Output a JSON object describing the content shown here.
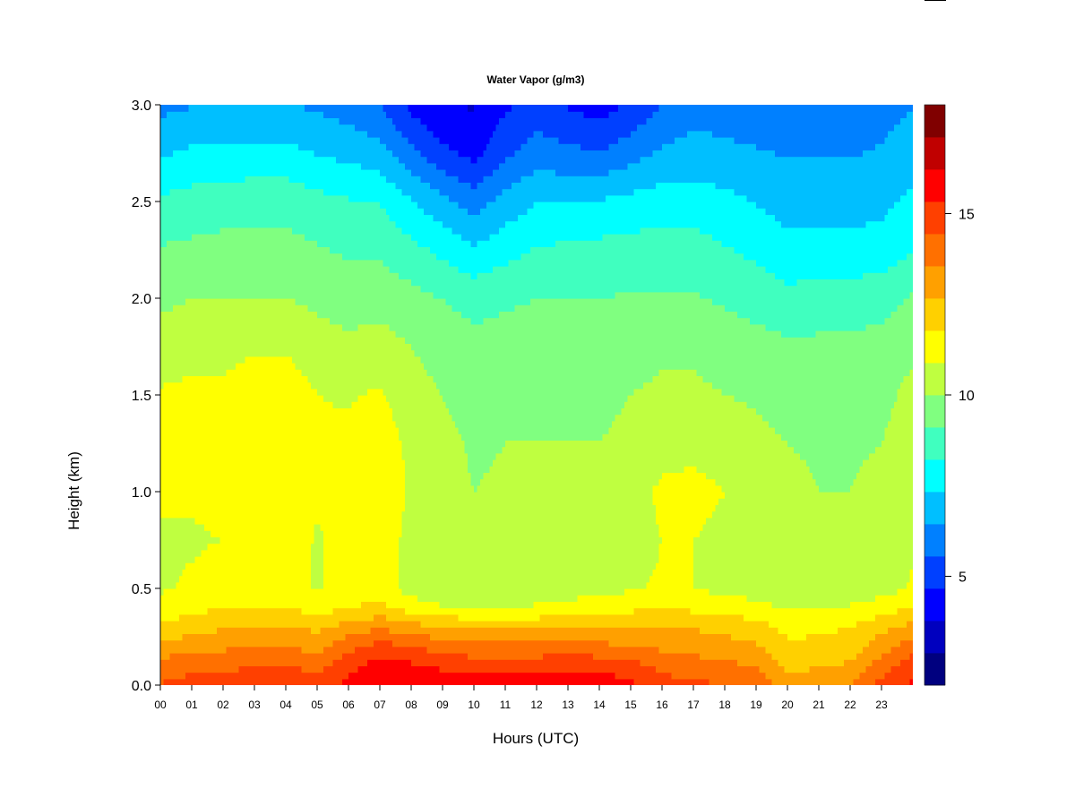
{
  "chart_data": {
    "type": "heatmap",
    "title": "Water Vapor (g/m3)",
    "xlabel": "Hours (UTC)",
    "ylabel": "Height (km)",
    "xlim": [
      0,
      24
    ],
    "ylim": [
      0,
      3.0
    ],
    "x_ticks": [
      "00",
      "01",
      "02",
      "03",
      "04",
      "05",
      "06",
      "07",
      "08",
      "09",
      "10",
      "11",
      "12",
      "13",
      "14",
      "15",
      "16",
      "17",
      "18",
      "19",
      "20",
      "21",
      "22",
      "23"
    ],
    "y_ticks": [
      "0.0",
      "0.5",
      "1.0",
      "1.5",
      "2.0",
      "2.5",
      "3.0"
    ],
    "colorbar": {
      "range": [
        2,
        18
      ],
      "ticks": [
        "5",
        "10",
        "15"
      ],
      "tick_values": [
        5,
        10,
        15
      ],
      "level_colors": [
        "#00007F",
        "#0000BF",
        "#0000FF",
        "#0040FF",
        "#0080FF",
        "#00BFFF",
        "#00FFFF",
        "#40FFBF",
        "#80FF80",
        "#BFFF40",
        "#FFFF00",
        "#FFD000",
        "#FFA000",
        "#FF7000",
        "#FF4000",
        "#FF0000",
        "#C00000",
        "#800000"
      ]
    },
    "hours": [
      0,
      1,
      2,
      3,
      4,
      5,
      6,
      7,
      8,
      9,
      10,
      11,
      12,
      13,
      14,
      15,
      16,
      17,
      18,
      19,
      20,
      21,
      22,
      23,
      24
    ],
    "heights_km": [
      0.0,
      0.1,
      0.2,
      0.3,
      0.4,
      0.5,
      0.75,
      1.0,
      1.25,
      1.5,
      1.75,
      2.0,
      2.25,
      2.5,
      2.75,
      3.0
    ],
    "z": [
      [
        14.5,
        14.8,
        14.8,
        15.0,
        15.0,
        14.8,
        15.6,
        16.2,
        16.0,
        15.8,
        15.8,
        15.8,
        15.8,
        16.0,
        16.0,
        15.5,
        14.8,
        14.6,
        14.5,
        14.2,
        13.0,
        13.2,
        13.6,
        14.8,
        15.5
      ],
      [
        14.0,
        14.2,
        14.2,
        14.5,
        14.5,
        14.2,
        15.0,
        15.8,
        15.5,
        15.2,
        15.0,
        15.0,
        15.0,
        15.2,
        15.0,
        14.8,
        14.2,
        14.0,
        13.8,
        13.5,
        12.5,
        12.6,
        12.8,
        14.0,
        15.0
      ],
      [
        13.0,
        13.2,
        13.4,
        13.6,
        13.6,
        13.2,
        14.2,
        14.8,
        14.5,
        14.0,
        13.8,
        13.8,
        13.8,
        14.0,
        13.8,
        13.6,
        13.4,
        13.2,
        13.0,
        12.8,
        12.0,
        12.0,
        12.2,
        13.2,
        14.0
      ],
      [
        12.0,
        12.3,
        12.6,
        12.8,
        12.8,
        12.5,
        13.0,
        13.5,
        13.0,
        12.8,
        12.5,
        12.5,
        12.5,
        12.8,
        12.6,
        12.6,
        12.8,
        12.6,
        12.4,
        12.2,
        11.5,
        11.6,
        11.8,
        12.4,
        13.0
      ],
      [
        11.2,
        11.5,
        11.8,
        11.8,
        11.8,
        11.4,
        11.8,
        12.0,
        11.4,
        11.0,
        10.8,
        10.9,
        11.0,
        11.2,
        11.4,
        11.6,
        11.8,
        11.6,
        11.4,
        11.2,
        10.8,
        10.9,
        11.0,
        11.4,
        11.8
      ],
      [
        10.8,
        11.0,
        11.2,
        11.2,
        11.2,
        10.8,
        11.2,
        11.4,
        10.5,
        10.2,
        10.2,
        10.3,
        10.4,
        10.5,
        10.6,
        10.8,
        11.0,
        10.9,
        10.6,
        10.5,
        10.2,
        10.2,
        10.3,
        10.5,
        11.0
      ],
      [
        10.8,
        10.8,
        10.9,
        11.2,
        11.4,
        10.8,
        11.2,
        11.4,
        10.6,
        10.2,
        10.1,
        10.2,
        10.3,
        10.2,
        10.3,
        10.4,
        10.9,
        10.9,
        10.6,
        10.5,
        10.2,
        10.1,
        10.1,
        10.2,
        10.8
      ],
      [
        11.0,
        11.0,
        11.1,
        11.5,
        11.5,
        11.0,
        11.2,
        11.4,
        10.8,
        10.3,
        10.0,
        10.1,
        10.2,
        10.1,
        10.2,
        10.4,
        11.1,
        11.2,
        10.9,
        10.6,
        10.2,
        10.0,
        10.0,
        10.2,
        10.8
      ],
      [
        11.1,
        11.2,
        11.2,
        11.5,
        11.5,
        11.0,
        11.1,
        11.3,
        10.7,
        10.2,
        9.9,
        10.0,
        10.0,
        10.0,
        10.0,
        10.2,
        10.5,
        10.6,
        10.4,
        10.2,
        10.0,
        9.9,
        9.9,
        10.0,
        10.6
      ],
      [
        11.0,
        11.1,
        11.1,
        11.4,
        11.4,
        10.9,
        10.8,
        11.0,
        10.4,
        10.0,
        9.7,
        9.8,
        9.8,
        9.8,
        9.8,
        10.0,
        10.2,
        10.2,
        10.0,
        9.9,
        9.7,
        9.6,
        9.6,
        9.7,
        10.3
      ],
      [
        10.4,
        10.6,
        10.6,
        10.8,
        10.8,
        10.4,
        10.2,
        10.4,
        10.0,
        9.6,
        9.4,
        9.4,
        9.5,
        9.5,
        9.5,
        9.6,
        9.8,
        9.8,
        9.6,
        9.4,
        9.3,
        9.3,
        9.3,
        9.4,
        9.8
      ],
      [
        9.8,
        10.0,
        10.0,
        10.0,
        10.0,
        9.8,
        9.6,
        9.6,
        9.4,
        9.1,
        8.8,
        9.0,
        9.1,
        9.1,
        9.1,
        9.2,
        9.2,
        9.2,
        9.0,
        8.8,
        8.5,
        8.6,
        8.7,
        8.8,
        9.2
      ],
      [
        9.2,
        9.3,
        9.4,
        9.4,
        9.4,
        9.2,
        9.0,
        9.0,
        8.5,
        8.0,
        7.5,
        7.9,
        8.3,
        8.4,
        8.5,
        8.6,
        8.6,
        8.6,
        8.3,
        8.0,
        7.6,
        7.6,
        7.6,
        7.7,
        8.2
      ],
      [
        8.4,
        8.6,
        8.7,
        8.8,
        8.8,
        8.5,
        8.3,
        8.2,
        7.4,
        6.7,
        6.0,
        6.8,
        7.3,
        7.3,
        7.4,
        7.6,
        7.8,
        7.8,
        7.6,
        7.3,
        7.0,
        7.0,
        7.0,
        7.1,
        7.6
      ],
      [
        7.2,
        7.5,
        7.6,
        7.6,
        7.6,
        7.3,
        7.1,
        6.8,
        5.8,
        4.9,
        4.4,
        5.4,
        6.0,
        5.8,
        5.6,
        6.1,
        6.6,
        6.8,
        6.6,
        6.5,
        6.4,
        6.4,
        6.4,
        6.5,
        6.8
      ],
      [
        6.2,
        6.4,
        6.5,
        6.5,
        6.5,
        6.3,
        6.0,
        5.6,
        4.4,
        3.8,
        3.7,
        4.5,
        5.0,
        4.6,
        4.2,
        4.8,
        5.6,
        6.1,
        6.1,
        6.1,
        6.1,
        6.2,
        6.2,
        6.2,
        6.4
      ]
    ]
  }
}
